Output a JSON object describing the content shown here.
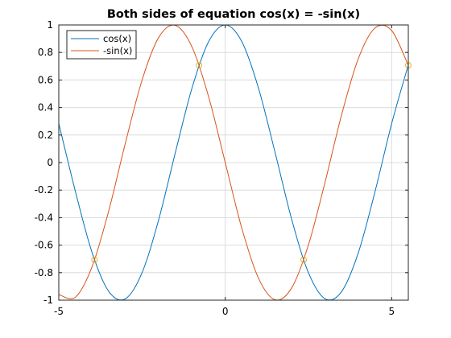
{
  "chart_data": {
    "type": "line",
    "title": "Both sides of equation cos(x) = -sin(x)",
    "xlabel": "",
    "ylabel": "",
    "xlim": [
      -5,
      5.5
    ],
    "ylim": [
      -1,
      1
    ],
    "x_ticks": [
      -5,
      0,
      5
    ],
    "y_ticks": [
      -1,
      -0.8,
      -0.6,
      -0.4,
      -0.2,
      0,
      0.2,
      0.4,
      0.6,
      0.8,
      1
    ],
    "x_tick_labels": [
      "-5",
      "0",
      "5"
    ],
    "y_tick_labels": [
      "-1",
      "-0.8",
      "-0.6",
      "-0.4",
      "-0.2",
      "0",
      "0.2",
      "0.4",
      "0.6",
      "0.8",
      "1"
    ],
    "grid": true,
    "legend_position": "top-left",
    "series": [
      {
        "name": "cos(x)",
        "color": "#0072bd",
        "x": [
          -5.0,
          -4.5,
          -4.0,
          -3.5,
          -3.0,
          -2.5,
          -2.0,
          -1.5,
          -1.0,
          -0.5,
          0.0,
          0.5,
          1.0,
          1.5,
          2.0,
          2.5,
          3.0,
          3.5,
          4.0,
          4.5,
          5.0,
          5.5
        ],
        "values": [
          0.284,
          -0.211,
          -0.654,
          -0.936,
          -0.99,
          -0.801,
          -0.416,
          0.071,
          0.54,
          0.878,
          1.0,
          0.878,
          0.54,
          0.071,
          -0.416,
          -0.801,
          -0.99,
          -0.936,
          -0.654,
          -0.211,
          0.284,
          0.709
        ]
      },
      {
        "name": "-sin(x)",
        "color": "#d95319",
        "x": [
          -5.0,
          -4.5,
          -4.0,
          -3.5,
          -3.0,
          -2.5,
          -2.0,
          -1.5,
          -1.0,
          -0.5,
          0.0,
          0.5,
          1.0,
          1.5,
          2.0,
          2.5,
          3.0,
          3.5,
          4.0,
          4.5,
          5.0,
          5.5
        ],
        "values": [
          -0.959,
          -0.978,
          -0.757,
          -0.351,
          0.141,
          0.598,
          0.909,
          0.997,
          0.841,
          0.479,
          0.0,
          -0.479,
          -0.841,
          -0.997,
          -0.909,
          -0.598,
          -0.141,
          0.351,
          0.757,
          0.978,
          0.959,
          0.706
        ]
      }
    ],
    "intersections": {
      "color": "#edb120",
      "x": [
        -3.927,
        -0.785,
        2.356,
        5.498
      ],
      "y": [
        -0.707,
        0.707,
        -0.707,
        0.707
      ]
    }
  }
}
